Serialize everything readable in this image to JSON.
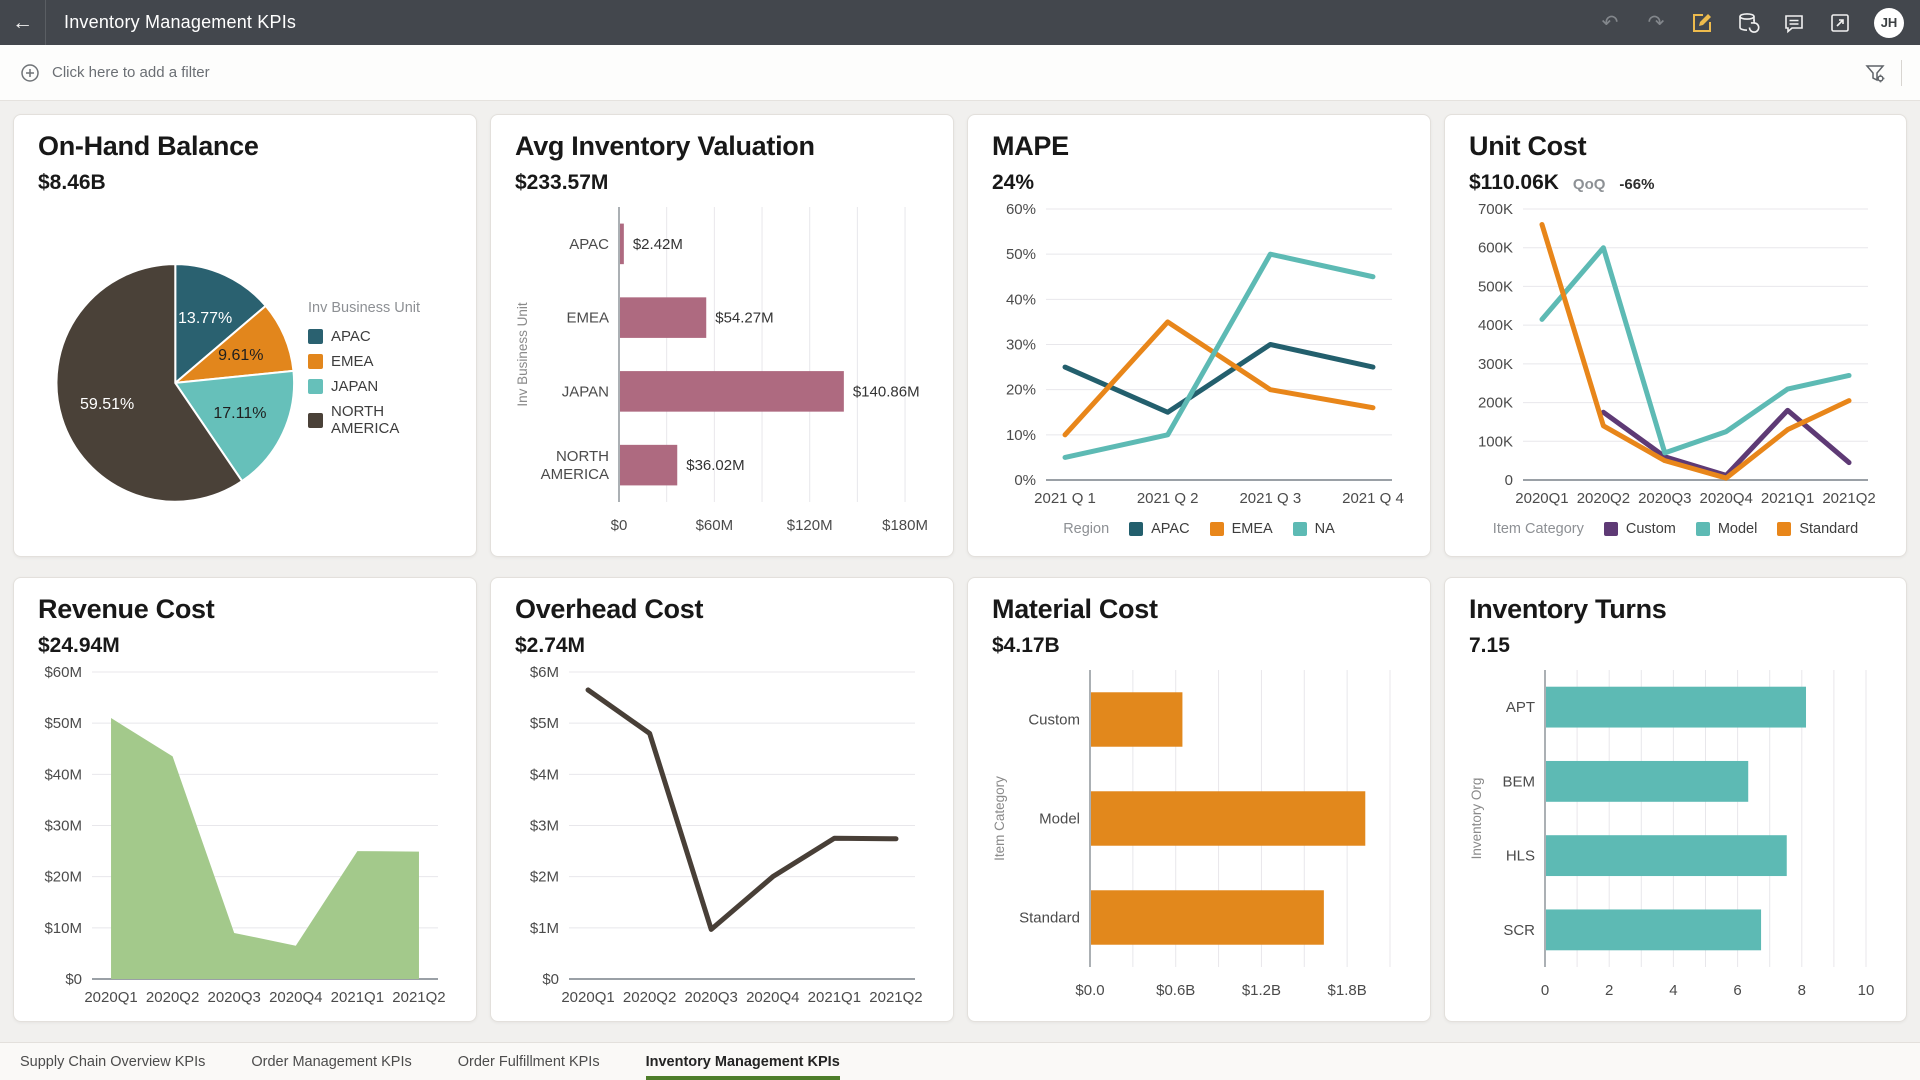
{
  "topbar": {
    "title": "Inventory Management KPIs",
    "avatar": "JH",
    "icons": [
      "undo-icon",
      "redo-icon",
      "edit-icon",
      "refresh-data-icon",
      "comment-icon",
      "popout-icon"
    ]
  },
  "filterbar": {
    "add_filter_label": "Click here to add a filter",
    "icons": [
      "add-filter-icon",
      "filter-settings-icon"
    ]
  },
  "colors": {
    "accent_gold": "#eebb4d",
    "tab_active_green": "#4d7d2a",
    "topbar_bg": "#43474d"
  },
  "tabs": [
    {
      "label": "Supply Chain Overview KPIs",
      "active": false
    },
    {
      "label": "Order Management KPIs",
      "active": false
    },
    {
      "label": "Order Fulfillment KPIs",
      "active": false
    },
    {
      "label": "Inventory Management KPIs",
      "active": true
    }
  ],
  "cards": [
    {
      "id": "on-hand-balance",
      "title": "On-Hand Balance",
      "value": "$8.46B",
      "chart_data": {
        "type": "pie",
        "legend_title": "Inv Business Unit",
        "legend_position": "right",
        "categories": [
          "APAC",
          "EMEA",
          "JAPAN",
          "NORTH AMERICA"
        ],
        "values": [
          13.77,
          9.61,
          17.11,
          59.51
        ],
        "labels": [
          "13.77%",
          "9.61%",
          "17.11%",
          "59.51%"
        ],
        "colors": [
          "#2a6170",
          "#e2861c",
          "#66c0ba",
          "#4a4138"
        ],
        "label_colors": [
          "#ffffff",
          "#1f1f1f",
          "#1f1f1f",
          "#ffffff"
        ]
      }
    },
    {
      "id": "avg-inventory-valuation",
      "title": "Avg Inventory Valuation",
      "value": "$233.57M",
      "chart_data": {
        "type": "hbar",
        "categories": [
          "APAC",
          "EMEA",
          "JAPAN",
          "NORTH AMERICA"
        ],
        "values": [
          2.42,
          54.27,
          140.86,
          36.02
        ],
        "data_labels": [
          "$2.42M",
          "$54.27M",
          "$140.86M",
          "$36.02M"
        ],
        "xlim": [
          0,
          185
        ],
        "x_tick_vals": [
          0,
          60,
          120,
          180
        ],
        "x_ticks": [
          "$0",
          "$60M",
          "$120M",
          "$180M"
        ],
        "x_minor_step": 30,
        "ylabel": "Inv Business Unit",
        "label_col": 82,
        "bar_color": "#ae6a80",
        "grid": true
      }
    },
    {
      "id": "mape",
      "title": "MAPE",
      "value": "24%",
      "chart_data": {
        "type": "line",
        "x": [
          "2021 Q 1",
          "2021 Q 2",
          "2021 Q 3",
          "2021 Q 4"
        ],
        "series": [
          {
            "name": "APAC",
            "color": "#235f6d",
            "values": [
              25,
              15,
              30,
              25
            ]
          },
          {
            "name": "EMEA",
            "color": "#e8861a",
            "values": [
              10,
              35,
              20,
              16
            ]
          },
          {
            "name": "NA",
            "color": "#5dbab4",
            "values": [
              5,
              10,
              50,
              45
            ]
          }
        ],
        "ylim": [
          0,
          60
        ],
        "yticks": [
          "0%",
          "10%",
          "20%",
          "30%",
          "40%",
          "50%",
          "60%"
        ],
        "legend_title": "Region",
        "legend_position": "bottom",
        "grid": true
      }
    },
    {
      "id": "unit-cost",
      "title": "Unit Cost",
      "value": "$110.06K",
      "badge_label": "QoQ",
      "badge_value": "-66%",
      "chart_data": {
        "type": "line",
        "x": [
          "2020Q1",
          "2020Q2",
          "2020Q3",
          "2020Q4",
          "2021Q1",
          "2021Q2"
        ],
        "series": [
          {
            "name": "Custom",
            "color": "#5e3a75",
            "values": [
              null,
              175,
              60,
              12,
              180,
              45
            ]
          },
          {
            "name": "Model",
            "color": "#5dbab4",
            "values": [
              415,
              600,
              70,
              125,
              235,
              270
            ]
          },
          {
            "name": "Standard",
            "color": "#e8861a",
            "values": [
              660,
              140,
              50,
              5,
              130,
              205
            ]
          }
        ],
        "ylim": [
          0,
          700
        ],
        "yticks": [
          "0",
          "100K",
          "200K",
          "300K",
          "400K",
          "500K",
          "600K",
          "700K"
        ],
        "legend_title": "Item Category",
        "legend_position": "bottom",
        "grid": true
      }
    },
    {
      "id": "revenue-cost",
      "title": "Revenue Cost",
      "value": "$24.94M",
      "chart_data": {
        "type": "area",
        "x": [
          "2020Q1",
          "2020Q2",
          "2020Q3",
          "2020Q4",
          "2021Q1",
          "2021Q2"
        ],
        "values": [
          51,
          43.5,
          9,
          6.5,
          25,
          24.9
        ],
        "ylim": [
          0,
          60
        ],
        "yticks": [
          "$0",
          "$10M",
          "$20M",
          "$30M",
          "$40M",
          "$50M",
          "$60M"
        ],
        "fill_color": "#a3c98b",
        "grid": true
      }
    },
    {
      "id": "overhead-cost",
      "title": "Overhead Cost",
      "value": "$2.74M",
      "chart_data": {
        "type": "line",
        "x": [
          "2020Q1",
          "2020Q2",
          "2020Q3",
          "2020Q4",
          "2021Q1",
          "2021Q2"
        ],
        "series": [
          {
            "name": "Overhead Cost",
            "color": "#483f37",
            "values": [
              5.65,
              4.8,
              0.97,
              2,
              2.75,
              2.74
            ]
          }
        ],
        "ylim": [
          0,
          6
        ],
        "yticks": [
          "$0",
          "$1M",
          "$2M",
          "$3M",
          "$4M",
          "$5M",
          "$6M"
        ],
        "grid": true
      }
    },
    {
      "id": "material-cost",
      "title": "Material Cost",
      "value": "$4.17B",
      "chart_data": {
        "type": "hbar",
        "categories": [
          "Custom",
          "Model",
          "Standard"
        ],
        "values": [
          0.64,
          1.92,
          1.63
        ],
        "xlim": [
          0,
          2.1
        ],
        "x_tick_vals": [
          0,
          0.6,
          1.2,
          1.8
        ],
        "x_ticks": [
          "$0.0",
          "$0.6B",
          "$1.2B",
          "$1.8B"
        ],
        "x_minor_step": 0.3,
        "ylabel": "Item Category",
        "label_col": 76,
        "bar_color": "#e2881c",
        "grid": true
      }
    },
    {
      "id": "inventory-turns",
      "title": "Inventory Turns",
      "value": "7.15",
      "chart_data": {
        "type": "hbar",
        "categories": [
          "APT",
          "BEM",
          "HLS",
          "SCR"
        ],
        "values": [
          8.1,
          6.3,
          7.5,
          6.7
        ],
        "xlim": [
          0,
          10
        ],
        "x_tick_vals": [
          0,
          2,
          4,
          6,
          8,
          10
        ],
        "x_ticks": [
          "0",
          "2",
          "4",
          "6",
          "8",
          "10"
        ],
        "x_minor_step": 1,
        "ylabel": "Inventory Org",
        "label_col": 54,
        "bar_color": "#5dbab4",
        "grid": true
      }
    }
  ]
}
